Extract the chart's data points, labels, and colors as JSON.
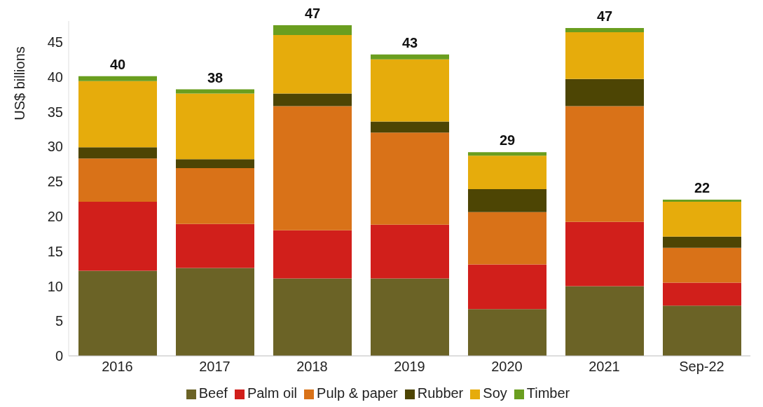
{
  "chart_data": {
    "type": "bar",
    "stacked": true,
    "ylabel": "US$ billions",
    "categories": [
      "2016",
      "2017",
      "2018",
      "2019",
      "2020",
      "2021",
      "Sep-22"
    ],
    "series": [
      {
        "name": "Beef",
        "color": "#6b6326",
        "values": [
          12.2,
          12.6,
          11.1,
          11.1,
          6.7,
          10.0,
          7.2
        ]
      },
      {
        "name": "Palm oil",
        "color": "#d11f1b",
        "values": [
          9.9,
          6.3,
          6.9,
          7.7,
          6.4,
          9.2,
          3.3
        ]
      },
      {
        "name": "Pulp & paper",
        "color": "#d97218",
        "values": [
          6.2,
          8.0,
          17.8,
          13.2,
          7.5,
          16.6,
          5.0
        ]
      },
      {
        "name": "Rubber",
        "color": "#4d4504",
        "values": [
          1.6,
          1.3,
          1.8,
          1.6,
          3.3,
          3.9,
          1.6
        ]
      },
      {
        "name": "Soy",
        "color": "#e6ac0c",
        "values": [
          9.5,
          9.4,
          8.4,
          8.9,
          4.8,
          6.7,
          5.0
        ]
      },
      {
        "name": "Timber",
        "color": "#6a9e1f",
        "values": [
          0.7,
          0.6,
          1.4,
          0.7,
          0.5,
          0.6,
          0.3
        ]
      }
    ],
    "totals": [
      "40",
      "38",
      "47",
      "43",
      "29",
      "47",
      "22"
    ],
    "ylim": [
      0,
      48
    ],
    "yticks": [
      0,
      5,
      10,
      15,
      20,
      25,
      30,
      35,
      40,
      45
    ],
    "grid": false,
    "legend": "bottom"
  }
}
